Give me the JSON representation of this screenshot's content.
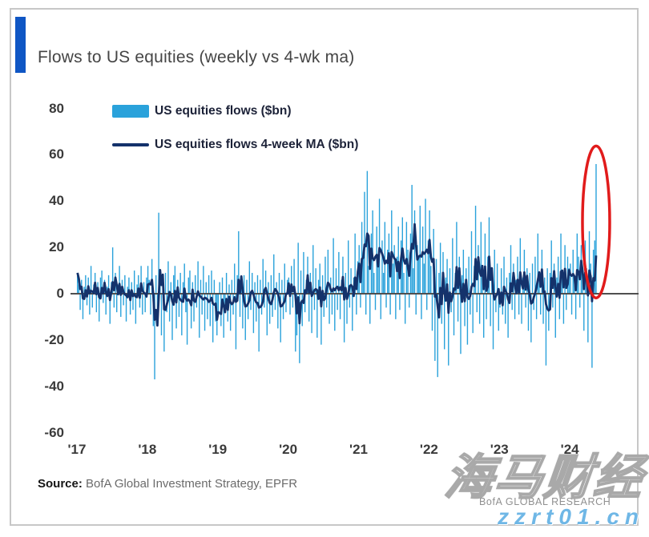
{
  "header": {
    "title": "Flows to US equities (weekly vs 4-wk ma)"
  },
  "colors": {
    "accent_blue": "#0f56c4",
    "bar_blue": "#2aa2db",
    "ma_navy": "#14326b",
    "zero_line": "#4f4f4f",
    "highlight_red": "#e11b1b",
    "frame_grey": "#c7c7c7"
  },
  "legend": {
    "items": [
      {
        "label": "US equities flows ($bn)",
        "type": "bar",
        "color": "#2aa2db"
      },
      {
        "label": "US equities flows 4-week MA ($bn)",
        "type": "line",
        "color": "#14326b"
      }
    ]
  },
  "footer": {
    "source_label": "Source:",
    "source_text": " BofA Global Investment Strategy, EPFR",
    "brand": "BofA GLOBAL RESEARCH"
  },
  "watermark": {
    "text": "海马财经",
    "url": "zzrt01.cn"
  },
  "chart_data": {
    "type": "bar",
    "title": "Flows to US equities (weekly vs 4-wk ma)",
    "xlabel": "",
    "ylabel": "",
    "unit": "$bn",
    "frequency": "weekly",
    "ylim": [
      -60,
      80
    ],
    "y_ticks": [
      80,
      60,
      40,
      20,
      0,
      -20,
      -40,
      -60
    ],
    "x_ticks": [
      "'17",
      "'18",
      "'19",
      "'20",
      "'21",
      "'22",
      "'23",
      "'24"
    ],
    "weeks_per_year": 52,
    "ma_window": 4,
    "grid": false,
    "legend_position": "top-left",
    "series": [
      {
        "name": "US equities flows ($bn)",
        "type": "bar",
        "color": "#2aa2db",
        "values": [
          9,
          4,
          -7,
          6,
          -11,
          3,
          8,
          -5,
          7,
          -9,
          12,
          -6,
          4,
          9,
          -8,
          5,
          -12,
          7,
          10,
          -4,
          6,
          -9,
          3,
          8,
          -13,
          5,
          20,
          -6,
          9,
          -8,
          4,
          12,
          -10,
          6,
          -5,
          8,
          -12,
          3,
          7,
          -9,
          5,
          -7,
          10,
          -13,
          4,
          8,
          -6,
          12,
          -9,
          5,
          -8,
          7,
          12,
          6,
          -9,
          15,
          -14,
          -37,
          8,
          -12,
          35,
          10,
          -18,
          6,
          -25,
          9,
          -8,
          14,
          -12,
          5,
          -20,
          8,
          12,
          -15,
          6,
          -10,
          9,
          -18,
          5,
          13,
          -8,
          -22,
          7,
          10,
          -15,
          5,
          -12,
          8,
          -6,
          14,
          -19,
          6,
          -9,
          12,
          -16,
          5,
          -11,
          8,
          -14,
          10,
          -21,
          6,
          -12,
          -18,
          -8,
          5,
          -14,
          7,
          -19,
          -6,
          9,
          -12,
          4,
          -16,
          6,
          -9,
          13,
          -24,
          8,
          27,
          -10,
          5,
          -15,
          8,
          -20,
          6,
          -11,
          14,
          -7,
          9,
          -17,
          5,
          -12,
          8,
          -25,
          6,
          -9,
          15,
          -6,
          10,
          -18,
          5,
          -13,
          8,
          -10,
          17,
          -7,
          5,
          -15,
          9,
          -21,
          6,
          -11,
          13,
          -8,
          6,
          7,
          -9,
          12,
          -6,
          15,
          -25,
          -18,
          22,
          -30,
          10,
          -14,
          18,
          -8,
          6,
          16,
          -12,
          9,
          -17,
          21,
          -7,
          11,
          -19,
          6,
          13,
          -22,
          8,
          -10,
          16,
          -6,
          19,
          -13,
          7,
          -9,
          24,
          -16,
          11,
          -7,
          18,
          -11,
          6,
          16,
          -21,
          9,
          -13,
          23,
          -6,
          11,
          -16,
          7,
          26,
          -9,
          14,
          21,
          -6,
          31,
          16,
          44,
          -9,
          53,
          12,
          -13,
          26,
          36,
          9,
          -7,
          29,
          16,
          41,
          -11,
          23,
          9,
          31,
          -6,
          19,
          26,
          -9,
          36,
          13,
          21,
          -11,
          16,
          29,
          -7,
          23,
          33,
          9,
          -13,
          31,
          19,
          -6,
          26,
          47,
          11,
          36,
          -9,
          21,
          16,
          38,
          -11,
          29,
          13,
          41,
          -7,
          23,
          36,
          12,
          -16,
          28,
          -29,
          15,
          -36,
          9,
          22,
          -13,
          18,
          -24,
          7,
          15,
          -31,
          11,
          -8,
          24,
          -18,
          9,
          31,
          -12,
          16,
          -26,
          8,
          19,
          -14,
          11,
          -22,
          16,
          -9,
          27,
          -17,
          12,
          38,
          -8,
          21,
          -13,
          31,
          9,
          -19,
          26,
          -11,
          16,
          33,
          -14,
          9,
          -24,
          19,
          -8,
          13,
          -16,
          -6,
          11,
          -9,
          16,
          -13,
          7,
          -19,
          9,
          21,
          -7,
          13,
          -11,
          6,
          16,
          -9,
          24,
          -13,
          7,
          19,
          -6,
          11,
          -16,
          9,
          -21,
          13,
          -7,
          16,
          -11,
          26,
          6,
          -9,
          19,
          -13,
          7,
          -31,
          11,
          -16,
          9,
          23,
          -6,
          13,
          -19,
          7,
          16,
          -11,
          26,
          9,
          -13,
          21,
          -7,
          16,
          11,
          13,
          -9,
          19,
          7,
          -11,
          26,
          16,
          -6,
          21,
          9,
          -16,
          23,
          11,
          -21,
          27,
          13,
          -32,
          19,
          23,
          56
        ]
      },
      {
        "name": "US equities flows 4-week MA ($bn)",
        "type": "line",
        "color": "#14326b",
        "derived": "4-week trailing moving average of the weekly flows series"
      }
    ],
    "annotation": {
      "type": "ellipse-highlight",
      "color": "#e11b1b",
      "target": "latest weekly bar",
      "note": "latest week record inflow ~$56bn"
    }
  }
}
